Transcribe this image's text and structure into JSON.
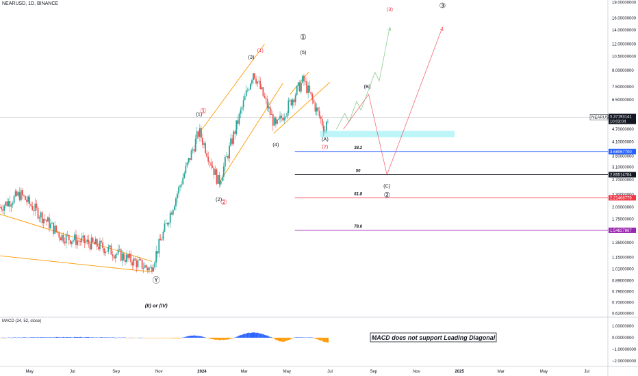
{
  "header": {
    "symbol_line": "NEARUSD, 1D, BINANCE"
  },
  "price_axis": {
    "ticks": [
      {
        "label": "19.00000000",
        "value": 19.0
      },
      {
        "label": "16.00000000",
        "value": 16.0
      },
      {
        "label": "14.00000000",
        "value": 14.0
      },
      {
        "label": "12.00000000",
        "value": 12.0
      },
      {
        "label": "10.50000000",
        "value": 10.5
      },
      {
        "label": "9.00000000",
        "value": 9.0
      },
      {
        "label": "7.50000000",
        "value": 7.5
      },
      {
        "label": "6.50000000",
        "value": 6.5
      },
      {
        "label": "4.70000000",
        "value": 4.7
      },
      {
        "label": "4.10000000",
        "value": 4.1
      },
      {
        "label": "3.50000000",
        "value": 3.5
      },
      {
        "label": "3.10000000",
        "value": 3.1
      },
      {
        "label": "2.70000000",
        "value": 2.7
      },
      {
        "label": "2.30000000",
        "value": 2.3
      },
      {
        "label": "2.00000000",
        "value": 2.0
      },
      {
        "label": "1.75000000",
        "value": 1.75
      },
      {
        "label": "1.35000000",
        "value": 1.35
      },
      {
        "label": "1.15000000",
        "value": 1.15
      },
      {
        "label": "1.01000000",
        "value": 1.01
      },
      {
        "label": "0.89000000",
        "value": 0.89
      },
      {
        "label": "0.79000000",
        "value": 0.79
      },
      {
        "label": "0.70000000",
        "value": 0.7
      },
      {
        "label": "0.62000000",
        "value": 0.62
      }
    ],
    "symbol_tag": "NEARUSD",
    "last_price": "5.37193141",
    "countdown": "10:03:04",
    "fib_tags": [
      {
        "label": "3.68067700",
        "value": 3.680677,
        "color": "#2962ff"
      },
      {
        "label": "2.85514704",
        "value": 2.85514704,
        "color": "#131722"
      },
      {
        "label": "2.21468779",
        "value": 2.21468779,
        "color": "#f23645"
      },
      {
        "label": "1.54827867",
        "value": 1.54827867,
        "color": "#9c27b0"
      }
    ]
  },
  "time_axis": [
    {
      "label": "May",
      "date": "2023-05-01"
    },
    {
      "label": "Jul",
      "date": "2023-07-01"
    },
    {
      "label": "Sep",
      "date": "2023-09-01"
    },
    {
      "label": "Nov",
      "date": "2023-11-01"
    },
    {
      "label": "2024",
      "date": "2024-01-01"
    },
    {
      "label": "Mar",
      "date": "2024-03-01"
    },
    {
      "label": "May",
      "date": "2024-05-01"
    },
    {
      "label": "Jul",
      "date": "2024-07-01"
    },
    {
      "label": "Sep",
      "date": "2024-09-01"
    },
    {
      "label": "Nov",
      "date": "2024-11-01"
    },
    {
      "label": "2025",
      "date": "2025-01-01"
    },
    {
      "label": "Mar",
      "date": "2025-03-01"
    },
    {
      "label": "May",
      "date": "2025-05-01"
    },
    {
      "label": "Jul",
      "date": "2025-07-01"
    }
  ],
  "fib_levels": [
    {
      "label": "38.2",
      "price": 3.680677,
      "color": "#2962ff"
    },
    {
      "label": "50",
      "price": 2.85514704,
      "color": "#131722"
    },
    {
      "label": "61.8",
      "price": 2.21468779,
      "color": "#f23645"
    },
    {
      "label": "78.6",
      "price": 1.54827867,
      "color": "#9c27b0"
    }
  ],
  "annotations": [
    {
      "text": "Ⓨ",
      "date": "2023-10-28",
      "price": 0.87,
      "color": "#131722"
    },
    {
      "text": "(II) or (IV)",
      "date": "2023-10-28",
      "price": 0.665,
      "color": "#131722",
      "bold": true,
      "italic": true
    },
    {
      "text": "(1)",
      "date": "2023-12-28",
      "price": 5.45,
      "color": "#131722"
    },
    {
      "text": "①",
      "date": "2024-01-03",
      "price": 5.6,
      "color": "#f23645"
    },
    {
      "text": "(2)",
      "date": "2024-01-25",
      "price": 2.14,
      "color": "#131722"
    },
    {
      "text": "②",
      "date": "2024-02-01",
      "price": 2.05,
      "color": "#f23645"
    },
    {
      "text": "(3)",
      "date": "2024-03-11",
      "price": 10.2,
      "color": "#131722"
    },
    {
      "text": "(1)",
      "date": "2024-03-24",
      "price": 11.0,
      "color": "#f23645"
    },
    {
      "text": "(4)",
      "date": "2024-04-15",
      "price": 3.9,
      "color": "#131722"
    },
    {
      "text": "①",
      "date": "2024-05-24",
      "price": 12.6,
      "color": "#131722"
    },
    {
      "text": "(5)",
      "date": "2024-05-24",
      "price": 10.75,
      "color": "#131722"
    },
    {
      "text": "(A)",
      "date": "2024-06-24",
      "price": 4.15,
      "color": "#131722"
    },
    {
      "text": "(2)",
      "date": "2024-06-24",
      "price": 3.82,
      "color": "#f23645"
    },
    {
      "text": "(B)",
      "date": "2024-08-23",
      "price": 7.4,
      "color": "#131722"
    },
    {
      "text": "(C)",
      "date": "2024-09-20",
      "price": 2.48,
      "color": "#131722"
    },
    {
      "text": "②",
      "date": "2024-09-20",
      "price": 2.22,
      "color": "#131722"
    },
    {
      "text": "(3)",
      "date": "2024-09-24",
      "price": 17.3,
      "color": "#f23645"
    },
    {
      "text": "③",
      "date": "2024-12-08",
      "price": 17.8,
      "color": "#131722"
    }
  ],
  "macd": {
    "title": "MACD (24, 52, close)",
    "ticks": [
      {
        "label": "1.00000000",
        "value": 1.0
      },
      {
        "label": "0.00000000",
        "value": 0.0
      },
      {
        "label": "−1.00000000",
        "value": -1.0
      },
      {
        "label": "−2.00000000",
        "value": -2.0
      }
    ],
    "note": "MACD does not support Leading Diagonal"
  },
  "colors": {
    "up": "#26a69a",
    "down": "#ef5350",
    "channel": "#ff9800",
    "highlight": "#b2f3f7",
    "macd_pos": "#2962ff",
    "macd_neg": "#ff9800"
  },
  "chart_data": {
    "type": "candlestick",
    "title": "NEARUSD, 1D, BINANCE",
    "y_scale": "log",
    "ylim": [
      0.6,
      19.5
    ],
    "xlim": [
      "2023-03-20",
      "2025-07-31"
    ],
    "key_points": [
      {
        "date": "2023-04-18",
        "close": 2.3
      },
      {
        "date": "2023-06-15",
        "close": 1.45
      },
      {
        "date": "2023-08-10",
        "close": 1.3
      },
      {
        "date": "2023-10-20",
        "close": 1.01
      },
      {
        "date": "2023-12-28",
        "close": 4.6
      },
      {
        "date": "2024-01-25",
        "close": 2.6
      },
      {
        "date": "2024-03-14",
        "close": 8.9
      },
      {
        "date": "2024-04-15",
        "close": 4.8
      },
      {
        "date": "2024-05-24",
        "close": 8.1
      },
      {
        "date": "2024-06-24",
        "close": 4.7
      },
      {
        "date": "2024-06-28",
        "close": 5.37
      }
    ],
    "projections": [
      {
        "color": "#f23645",
        "points": [
          [
            "2024-07-20",
            4.7
          ],
          [
            "2024-08-25",
            6.9
          ],
          [
            "2024-09-20",
            2.85
          ],
          [
            "2024-12-08",
            14.5
          ]
        ]
      },
      {
        "color": "#66bb6a",
        "points": [
          [
            "2024-07-10",
            4.7
          ],
          [
            "2024-07-22",
            5.6
          ],
          [
            "2024-07-28",
            5.1
          ],
          [
            "2024-08-08",
            6.4
          ],
          [
            "2024-08-14",
            5.8
          ],
          [
            "2024-09-03",
            8.8
          ],
          [
            "2024-09-09",
            8.0
          ],
          [
            "2024-09-24",
            14.5
          ]
        ]
      }
    ],
    "channels": [
      {
        "points": [
          [
            "2023-03-20",
            1.85
          ],
          [
            "2023-10-22",
            1.1
          ]
        ]
      },
      {
        "points": [
          [
            "2023-03-20",
            1.17
          ],
          [
            "2023-10-22",
            0.98
          ]
        ]
      },
      {
        "points": [
          [
            "2024-01-01",
            4.7
          ],
          [
            "2024-03-30",
            12.0
          ]
        ]
      },
      {
        "points": [
          [
            "2024-01-25",
            2.6
          ],
          [
            "2024-04-25",
            7.8
          ]
        ]
      },
      {
        "points": [
          [
            "2024-04-12",
            4.5
          ],
          [
            "2024-07-01",
            7.9
          ]
        ]
      },
      {
        "points": [
          [
            "2024-05-05",
            6.9
          ],
          [
            "2024-06-01",
            8.85
          ]
        ]
      }
    ],
    "last_close": 5.37193141
  }
}
